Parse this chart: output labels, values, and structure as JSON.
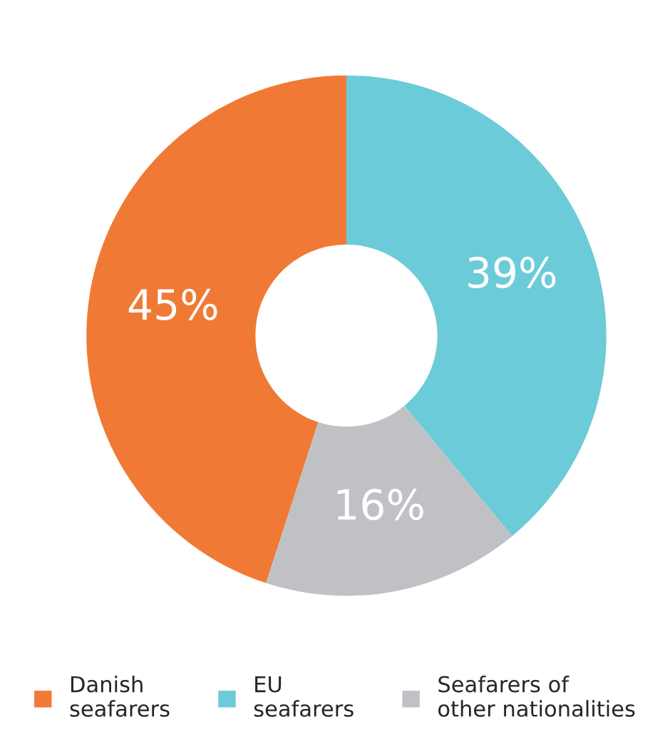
{
  "chart_data": {
    "type": "donut",
    "categories": [
      "Danish\nseafarers",
      "EU\nseafarers",
      "Seafarers of\nother nationalities"
    ],
    "values": [
      45,
      39,
      16
    ],
    "colors": [
      "#f07a35",
      "#6ccbd8",
      "#c0c1c4"
    ],
    "value_labels": [
      "45%",
      "39%",
      "16%"
    ],
    "legend": "bottom"
  }
}
